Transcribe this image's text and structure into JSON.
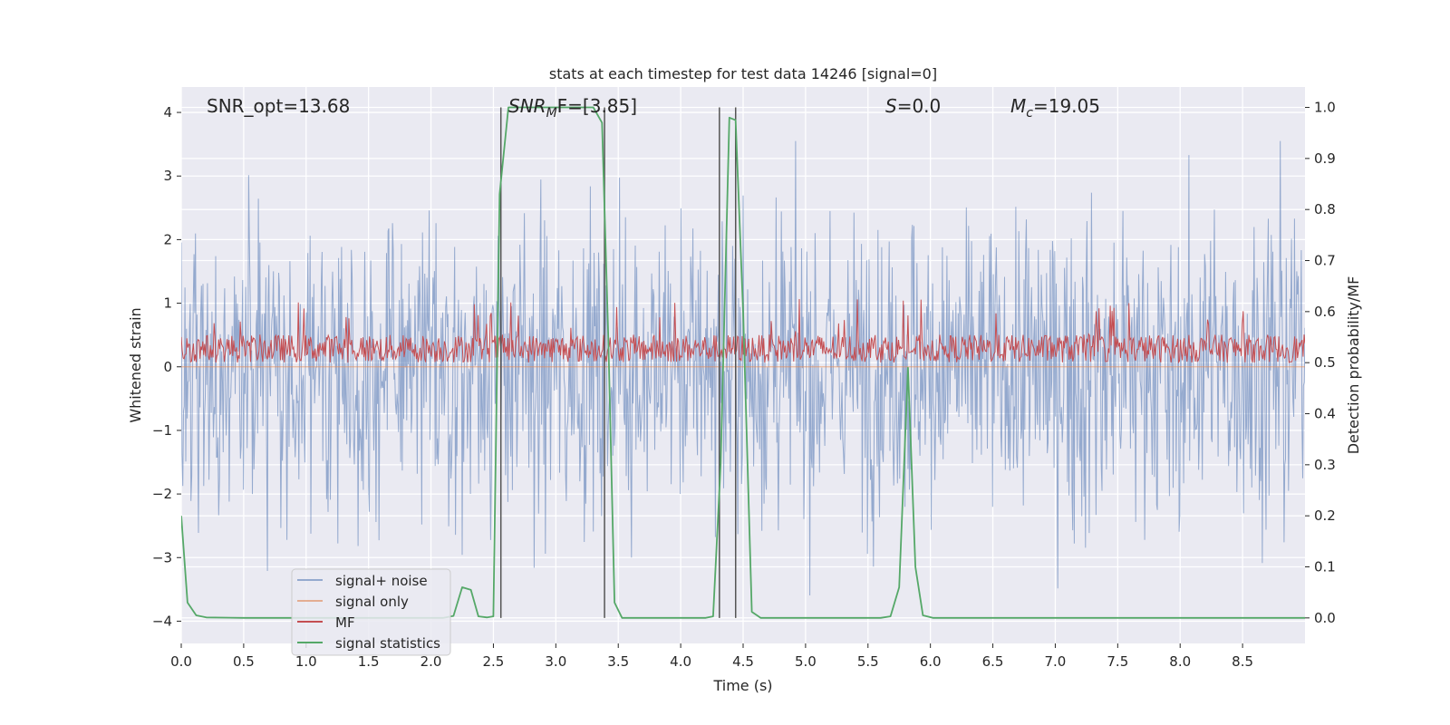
{
  "chart_data": {
    "type": "line",
    "title": "stats at each timestep for test data 14246 [signal=0]",
    "xlabel": "Time (s)",
    "ylabel_left": "Whitened strain",
    "ylabel_right": "Detection probability/MF",
    "xlim": [
      0.0,
      9.0
    ],
    "ylim_left": [
      -4.35,
      4.4
    ],
    "ylim_right": [
      -0.05,
      1.04
    ],
    "xticks": [
      0.0,
      0.5,
      1.0,
      1.5,
      2.0,
      2.5,
      3.0,
      3.5,
      4.0,
      4.5,
      5.0,
      5.5,
      6.0,
      6.5,
      7.0,
      7.5,
      8.0,
      8.5
    ],
    "xtick_labels": [
      "0.0",
      "0.5",
      "1.0",
      "1.5",
      "2.0",
      "2.5",
      "3.0",
      "3.5",
      "4.0",
      "4.5",
      "5.0",
      "5.5",
      "6.0",
      "6.5",
      "7.0",
      "7.5",
      "8.0",
      "8.5"
    ],
    "yticks_left": [
      -4,
      -3,
      -2,
      -1,
      0,
      1,
      2,
      3,
      4
    ],
    "ytick_labels_left": [
      "−4",
      "−3",
      "−2",
      "−1",
      "0",
      "1",
      "2",
      "3",
      "4"
    ],
    "yticks_right": [
      0.0,
      0.1,
      0.2,
      0.3,
      0.4,
      0.5,
      0.6,
      0.7,
      0.8,
      0.9,
      1.0
    ],
    "ytick_labels_right": [
      "0.0",
      "0.1",
      "0.2",
      "0.3",
      "0.4",
      "0.5",
      "0.6",
      "0.7",
      "0.8",
      "0.9",
      "1.0"
    ],
    "annotations": {
      "snr_opt": "SNR_opt=13.68",
      "snr_mf": {
        "math": "SNR",
        "sub": "M",
        "tail": "F=[3.85]"
      },
      "s_value": {
        "math": "S",
        "tail": "=0.0"
      },
      "mc_value": {
        "math": "M",
        "sub": "c",
        "tail": "=19.05"
      }
    },
    "legend": {
      "position": "lower-left",
      "entries": [
        "signal+ noise",
        "signal only",
        "MF",
        "signal statistics"
      ]
    },
    "series": [
      {
        "name": "signal+ noise",
        "color": "#4c72b0",
        "axis": "left",
        "style": "dense noise",
        "noise": {
          "t_start": 0.0,
          "t_end": 9.0,
          "typical_amplitude": 1.6,
          "max_up": 3.55,
          "min_down": -4.0
        }
      },
      {
        "name": "signal only",
        "color": "#dd8452",
        "axis": "left",
        "values": "flat at 0"
      },
      {
        "name": "MF",
        "color": "#c44e52",
        "axis": "right",
        "band": {
          "low": 0.5,
          "typical_high": 0.555,
          "max_high": 0.625
        }
      },
      {
        "name": "signal statistics",
        "color": "#55a868",
        "axis": "right",
        "points": [
          [
            0.0,
            0.2
          ],
          [
            0.05,
            0.03
          ],
          [
            0.12,
            0.005
          ],
          [
            0.2,
            0.001
          ],
          [
            0.5,
            0.0
          ],
          [
            2.1,
            0.0
          ],
          [
            2.18,
            0.004
          ],
          [
            2.25,
            0.06
          ],
          [
            2.32,
            0.055
          ],
          [
            2.38,
            0.003
          ],
          [
            2.45,
            0.001
          ],
          [
            2.5,
            0.003
          ],
          [
            2.55,
            0.83
          ],
          [
            2.62,
            1.0
          ],
          [
            3.3,
            1.0
          ],
          [
            3.37,
            0.97
          ],
          [
            3.42,
            0.55
          ],
          [
            3.47,
            0.03
          ],
          [
            3.53,
            0.0
          ],
          [
            4.2,
            0.0
          ],
          [
            4.26,
            0.003
          ],
          [
            4.32,
            0.3
          ],
          [
            4.39,
            0.98
          ],
          [
            4.44,
            0.975
          ],
          [
            4.5,
            0.6
          ],
          [
            4.57,
            0.012
          ],
          [
            4.64,
            0.0
          ],
          [
            5.6,
            0.0
          ],
          [
            5.68,
            0.003
          ],
          [
            5.75,
            0.06
          ],
          [
            5.82,
            0.49
          ],
          [
            5.88,
            0.1
          ],
          [
            5.94,
            0.005
          ],
          [
            6.02,
            0.0
          ],
          [
            9.0,
            0.0
          ]
        ]
      }
    ],
    "vertical_lines": [
      2.56,
      3.39,
      4.31,
      4.44
    ]
  }
}
